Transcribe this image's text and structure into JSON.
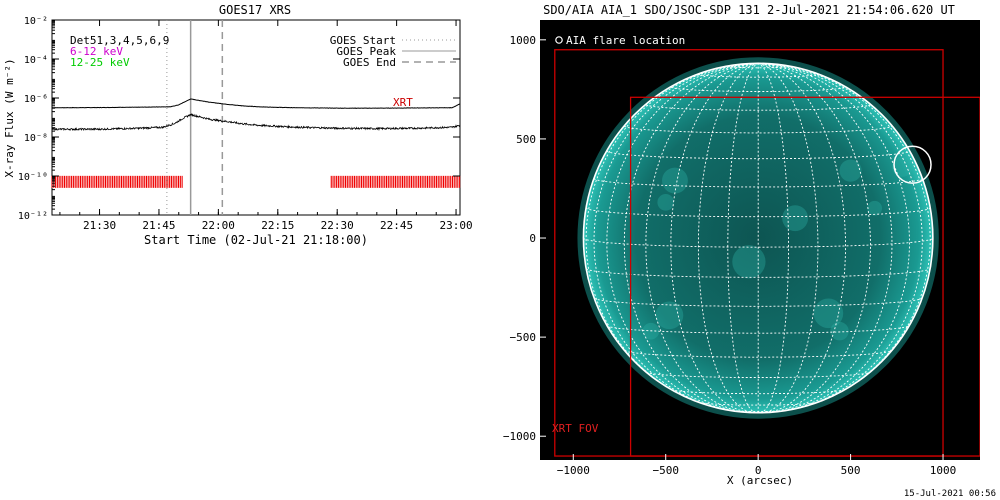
{
  "chart_data": [
    {
      "type": "line",
      "title": "GOES17 XRS",
      "xlabel": "Start Time (02-Jul-21 21:18:00)",
      "ylabel": "X-ray Flux (W m⁻²)",
      "x_ticks": [
        "21:30",
        "21:45",
        "22:00",
        "22:15",
        "22:30",
        "22:45",
        "23:00"
      ],
      "x_tick_minutes": [
        30,
        45,
        60,
        75,
        90,
        105,
        120
      ],
      "xlim_minutes": [
        18,
        121
      ],
      "y_ticks": [
        "10⁻¹²",
        "10⁻¹⁰",
        "10⁻⁸",
        "10⁻⁶",
        "10⁻⁴",
        "10⁻²"
      ],
      "y_tick_exponents": [
        -12,
        -10,
        -8,
        -6,
        -4,
        -2
      ],
      "ylim_log10": [
        -12,
        -2
      ],
      "y_scale": "log",
      "legend": {
        "det_label": "Det51,3,4,5,6,9",
        "low_label": "6-12 keV",
        "high_label": "12-25 keV",
        "start_label": "GOES Start",
        "peak_label": "GOES Peak",
        "end_label": "GOES End",
        "position": "top-right"
      },
      "event_lines": {
        "start_minute": 47,
        "peak_minute": 53,
        "end_minute": 61
      },
      "xrt_label": "XRT",
      "xrt_level_log10": -10.3,
      "xrt_intervals": [
        [
          18,
          51
        ],
        [
          88.5,
          121
        ]
      ],
      "series": [
        {
          "name": "",
          "x_minutes": [
            18,
            30,
            40,
            48,
            50,
            52,
            53,
            55,
            58,
            62,
            66,
            70,
            75,
            80,
            90,
            100,
            110,
            119,
            121
          ],
          "log10_flux": [
            -6.5,
            -6.49,
            -6.47,
            -6.45,
            -6.35,
            -6.15,
            -6.05,
            -6.12,
            -6.22,
            -6.32,
            -6.4,
            -6.45,
            -6.48,
            -6.5,
            -6.52,
            -6.52,
            -6.51,
            -6.5,
            -6.3
          ]
        },
        {
          "name": "",
          "x_minutes": [
            18,
            30,
            40,
            46,
            49,
            51,
            53,
            55,
            58,
            62,
            66,
            70,
            75,
            80,
            90,
            100,
            110,
            119,
            121
          ],
          "log10_flux": [
            -7.6,
            -7.6,
            -7.55,
            -7.5,
            -7.3,
            -7.05,
            -6.85,
            -6.95,
            -7.1,
            -7.2,
            -7.32,
            -7.4,
            -7.45,
            -7.5,
            -7.55,
            -7.57,
            -7.55,
            -7.5,
            -7.4
          ]
        }
      ]
    },
    {
      "type": "scatter",
      "title": "SDO/AIA AIA_1 SDO/JSOC-SDP 131  2-Jul-2021 21:54:06.620 UT",
      "xlabel": "X (arcsec)",
      "ylabel": "",
      "x_ticks": [
        "−1000",
        "−500",
        "0",
        "500",
        "1000"
      ],
      "x_tick_values": [
        -1000,
        -500,
        0,
        500,
        1000
      ],
      "y_ticks": [
        "−1000",
        "−500",
        "0",
        "500",
        "1000"
      ],
      "y_tick_values": [
        -1000,
        -500,
        0,
        500,
        1000
      ],
      "xlim": [
        -1180,
        1200
      ],
      "ylim": [
        -1120,
        1100
      ],
      "solar_radius_arcsec": 945,
      "grid_spacing_deg": 10,
      "legend_label": "AIA flare location",
      "flare_location": {
        "x": 835,
        "y": 370,
        "radius": 100
      },
      "xrt_fov_label": "XRT FOV",
      "xrt_fov": {
        "x1": -1100,
        "x2": 1000,
        "y1": -1100,
        "y2": 950
      },
      "xrt_fov_inner": {
        "x1": -690,
        "x2": 1200,
        "y1": -1100,
        "y2": 710
      },
      "timestamp": "15-Jul-2021 00:56",
      "colors": {
        "disk": "#0f6a66",
        "grid": "#ffffff",
        "fov": "#cc0000"
      }
    }
  ]
}
